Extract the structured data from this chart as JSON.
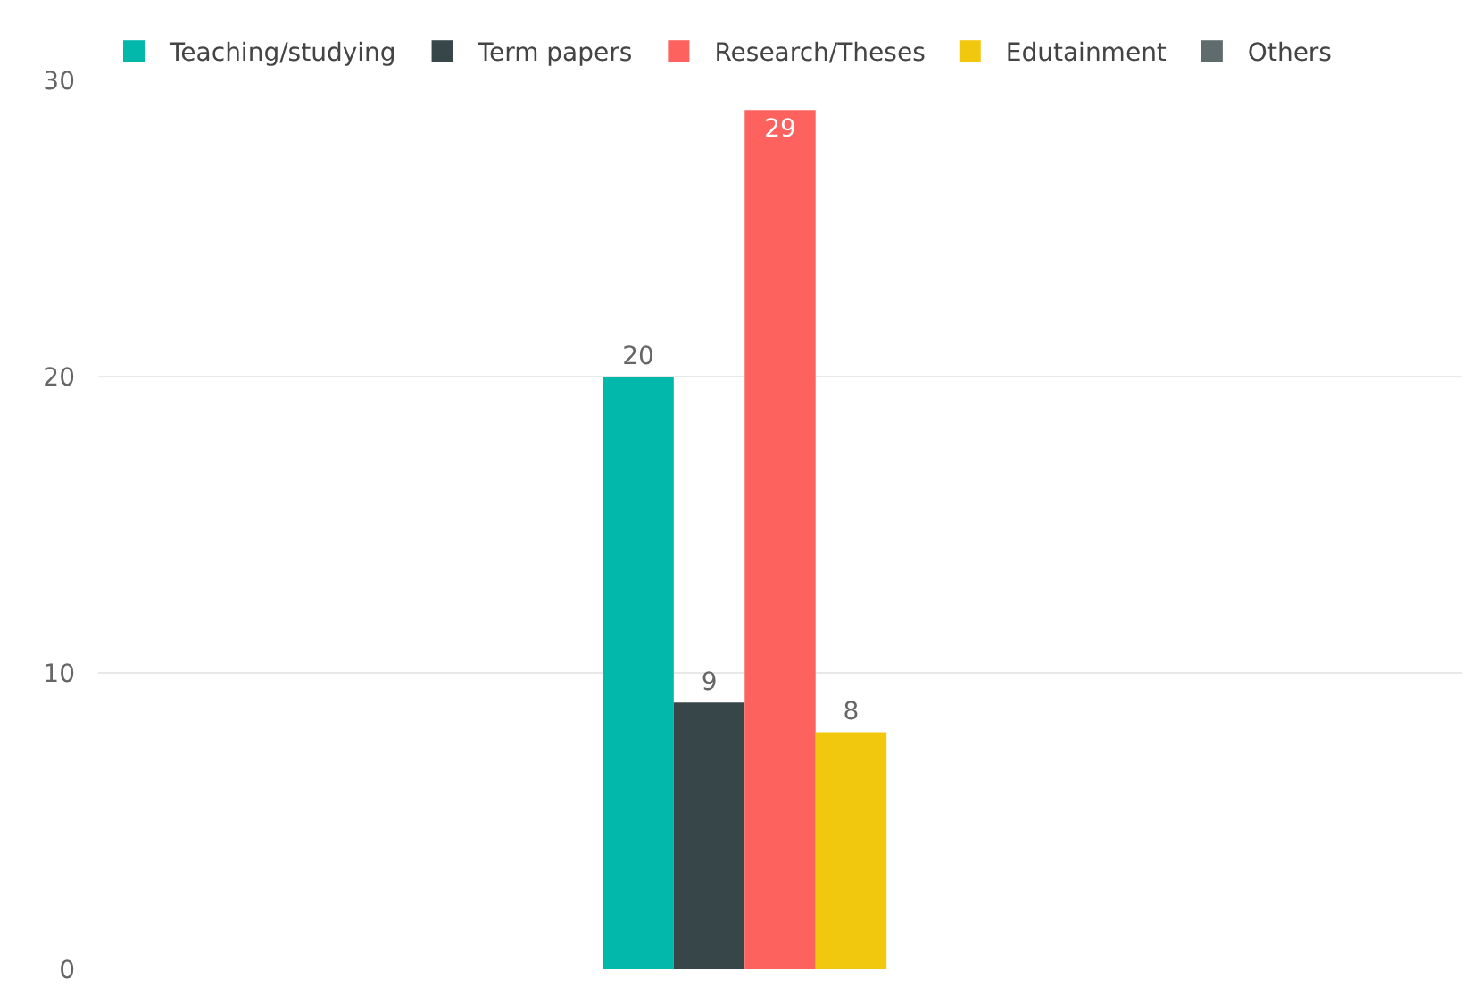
{
  "chart_data": {
    "type": "bar",
    "categories": [
      null
    ],
    "series": [
      {
        "name": "Teaching/studying",
        "color": "#01b8aa",
        "values": [
          20
        ]
      },
      {
        "name": "Term papers",
        "color": "#374649",
        "values": [
          9
        ]
      },
      {
        "name": "Research/Theses",
        "color": "#fd625e",
        "values": [
          29
        ]
      },
      {
        "name": "Edutainment",
        "color": "#f2c80f",
        "values": [
          8
        ]
      },
      {
        "name": "Others",
        "color": "#5f6b6d",
        "values": [
          null
        ]
      }
    ],
    "ylim": [
      0,
      30
    ],
    "yticks": [
      0,
      10,
      20,
      30
    ],
    "grid": "y",
    "legend": "top left",
    "data_labels": true,
    "tick_labels": "y"
  }
}
